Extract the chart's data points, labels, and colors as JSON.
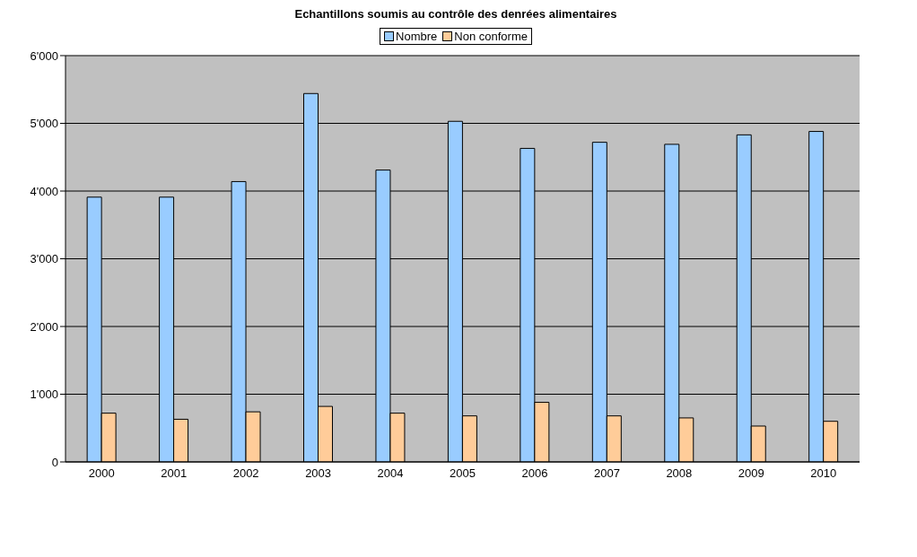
{
  "chart_data": {
    "type": "bar",
    "title": "Echantillons soumis au contrôle des denrées alimentaires",
    "categories": [
      "2000",
      "2001",
      "2002",
      "2003",
      "2004",
      "2005",
      "2006",
      "2007",
      "2008",
      "2009",
      "2010"
    ],
    "series": [
      {
        "name": "Nombre",
        "color": "#99ccff",
        "values": [
          3910,
          3910,
          4140,
          5440,
          4310,
          5030,
          4630,
          4720,
          4690,
          4830,
          4880
        ]
      },
      {
        "name": "Non conforme",
        "color": "#ffcc99",
        "values": [
          720,
          630,
          740,
          820,
          720,
          680,
          880,
          680,
          650,
          530,
          600
        ]
      }
    ],
    "ylim": [
      0,
      6000
    ],
    "yticks": [
      {
        "value": 0,
        "label": "0"
      },
      {
        "value": 1000,
        "label": "1'000"
      },
      {
        "value": 2000,
        "label": "2'000"
      },
      {
        "value": 3000,
        "label": "3'000"
      },
      {
        "value": 4000,
        "label": "4'000"
      },
      {
        "value": 5000,
        "label": "5'000"
      },
      {
        "value": 6000,
        "label": "6'000"
      }
    ],
    "grid": "y",
    "legend": "top"
  }
}
